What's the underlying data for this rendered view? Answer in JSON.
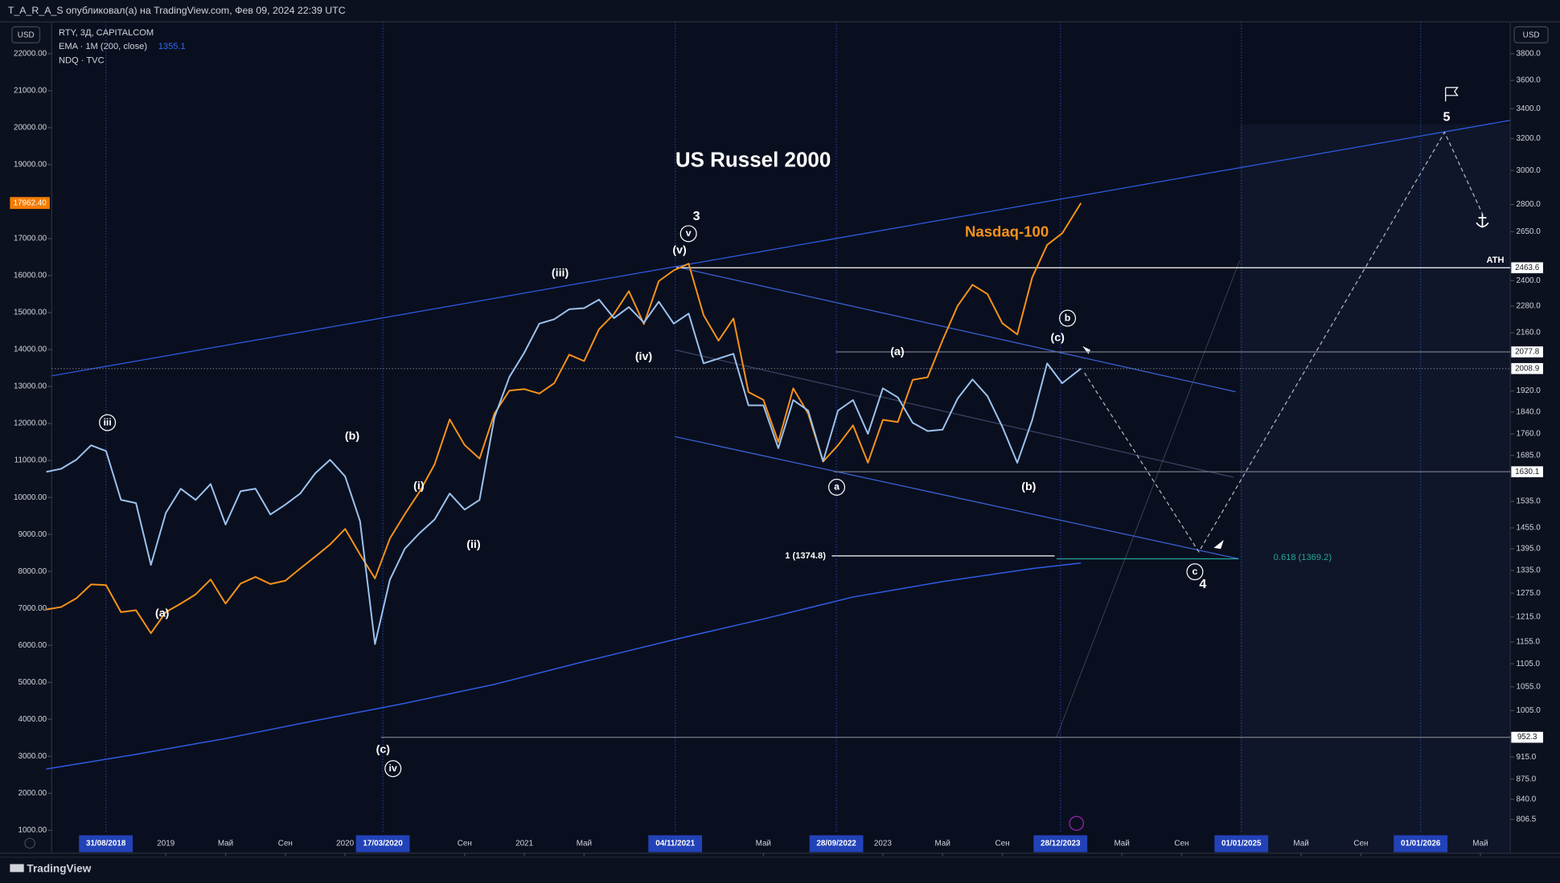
{
  "chart_data": {
    "type": "line",
    "header": "T_A_R_A_S опубликовал(а) на TradingView.com, Фев 09, 2024 22:39 UTC",
    "title": "US Russel 2000",
    "currency_left": "USD",
    "currency_right": "USD",
    "footer": "TradingView",
    "x": [
      "01/05/2018",
      "01/06/2018",
      "01/07/2018",
      "01/08/2018",
      "01/09/2018",
      "01/10/2018",
      "01/11/2018",
      "01/12/2018",
      "01/01/2019",
      "01/02/2019",
      "01/03/2019",
      "01/04/2019",
      "01/05/2019",
      "01/06/2019",
      "01/07/2019",
      "01/08/2019",
      "01/09/2019",
      "01/10/2019",
      "01/11/2019",
      "01/12/2019",
      "01/01/2020",
      "01/02/2020",
      "01/03/2020",
      "01/04/2020",
      "01/05/2020",
      "01/06/2020",
      "01/07/2020",
      "01/08/2020",
      "01/09/2020",
      "01/10/2020",
      "01/11/2020",
      "01/12/2020",
      "01/01/2021",
      "01/02/2021",
      "01/03/2021",
      "01/04/2021",
      "01/05/2021",
      "01/06/2021",
      "01/07/2021",
      "01/08/2021",
      "01/09/2021",
      "01/10/2021",
      "01/11/2021",
      "01/12/2021",
      "01/01/2022",
      "01/02/2022",
      "01/03/2022",
      "01/04/2022",
      "01/05/2022",
      "01/06/2022",
      "01/07/2022",
      "01/08/2022",
      "01/09/2022",
      "01/10/2022",
      "01/11/2022",
      "01/12/2022",
      "01/01/2023",
      "01/02/2023",
      "01/03/2023",
      "01/04/2023",
      "01/05/2023",
      "01/06/2023",
      "01/07/2023",
      "01/08/2023",
      "01/09/2023",
      "01/10/2023",
      "01/11/2023",
      "01/12/2023",
      "01/01/2024",
      "09/02/2024"
    ],
    "series": [
      {
        "name": "RTY, 3Д, CAPITALCOM",
        "color": "#9cc3ef",
        "axis": "y2",
        "values": [
          1630,
          1640,
          1670,
          1720,
          1700,
          1540,
          1530,
          1350,
          1500,
          1575,
          1540,
          1590,
          1465,
          1567,
          1575,
          1495,
          1525,
          1560,
          1625,
          1670,
          1615,
          1475,
          1150,
          1310,
          1395,
          1440,
          1480,
          1560,
          1510,
          1540,
          1820,
          1975,
          2075,
          2200,
          2220,
          2265,
          2270,
          2310,
          2225,
          2275,
          2205,
          2300,
          2200,
          2245,
          2030,
          2050,
          2070,
          1865,
          1865,
          1710,
          1885,
          1845,
          1665,
          1845,
          1885,
          1760,
          1930,
          1895,
          1800,
          1770,
          1775,
          1890,
          1965,
          1900,
          1785,
          1660,
          1810,
          2030,
          1950,
          2008.9
        ]
      },
      {
        "name": "EMA · 1M (200, close)",
        "color": "#2e5ce6",
        "axis": "y2",
        "x": [
          "01/05/2018",
          "01/11/2018",
          "01/05/2019",
          "01/11/2019",
          "01/05/2020",
          "01/11/2020",
          "01/05/2021",
          "01/11/2021",
          "01/05/2022",
          "01/11/2022",
          "01/05/2023",
          "01/11/2023",
          "09/02/2024"
        ],
        "values": [
          893,
          920,
          950,
          985,
          1020,
          1060,
          1110,
          1160,
          1210,
          1265,
          1305,
          1340,
          1355.1
        ]
      },
      {
        "name": "NDQ · TVC",
        "color": "#f7931a",
        "values": [
          6970,
          7040,
          7270,
          7650,
          7630,
          6900,
          6950,
          6330,
          6900,
          7130,
          7380,
          7780,
          7130,
          7670,
          7850,
          7660,
          7750,
          8080,
          8400,
          8730,
          9150,
          8460,
          7810,
          8890,
          9550,
          10160,
          10900,
          12110,
          11420,
          11050,
          12270,
          12890,
          12930,
          12810,
          13090,
          13860,
          13690,
          14550,
          14960,
          15580,
          14690,
          15850,
          16140,
          16320,
          14930,
          14240,
          14840,
          12850,
          12640,
          11500,
          12950,
          12270,
          10970,
          11410,
          11950,
          10940,
          12100,
          12040,
          13180,
          13250,
          14250,
          15180,
          15750,
          15500,
          14710,
          14410,
          15950,
          16830,
          17140,
          17962.4
        ]
      }
    ],
    "xlim": [
      "12/05/2018",
      "01/07/2026"
    ],
    "xticks": [
      {
        "value": "01/01/2019",
        "label": "2019"
      },
      {
        "value": "01/05/2019",
        "label": "Май"
      },
      {
        "value": "01/09/2019",
        "label": "Сен"
      },
      {
        "value": "01/01/2020",
        "label": "2020"
      },
      {
        "value": "01/09/2020",
        "label": "Сен"
      },
      {
        "value": "01/01/2021",
        "label": "2021"
      },
      {
        "value": "01/05/2021",
        "label": "Май"
      },
      {
        "value": "01/05/2022",
        "label": "Май"
      },
      {
        "value": "01/01/2023",
        "label": "2023"
      },
      {
        "value": "01/05/2023",
        "label": "Май"
      },
      {
        "value": "01/09/2023",
        "label": "Сен"
      },
      {
        "value": "01/05/2024",
        "label": "Май"
      },
      {
        "value": "01/09/2024",
        "label": "Сен"
      },
      {
        "value": "01/05/2025",
        "label": "Май"
      },
      {
        "value": "01/09/2025",
        "label": "Сен"
      },
      {
        "value": "01/05/2026",
        "label": "Май"
      }
    ],
    "x_markers": [
      "31/08/2018",
      "17/03/2020",
      "04/11/2021",
      "28/09/2022",
      "28/12/2023",
      "01/01/2025",
      "01/01/2026"
    ],
    "ylim": [
      1000,
      22000
    ],
    "yticks": [
      {
        "value": 1000,
        "label": "1000.00"
      },
      {
        "value": 2000,
        "label": "2000.00"
      },
      {
        "value": 3000,
        "label": "3000.00"
      },
      {
        "value": 4000,
        "label": "4000.00"
      },
      {
        "value": 5000,
        "label": "5000.00"
      },
      {
        "value": 6000,
        "label": "6000.00"
      },
      {
        "value": 7000,
        "label": "7000.00"
      },
      {
        "value": 8000,
        "label": "8000.00"
      },
      {
        "value": 9000,
        "label": "9000.00"
      },
      {
        "value": 10000,
        "label": "10000.00"
      },
      {
        "value": 11000,
        "label": "11000.00"
      },
      {
        "value": 12000,
        "label": "12000.00"
      },
      {
        "value": 13000,
        "label": "13000.00"
      },
      {
        "value": 14000,
        "label": "14000.00"
      },
      {
        "value": 15000,
        "label": "15000.00"
      },
      {
        "value": 16000,
        "label": "16000.00"
      },
      {
        "value": 17000,
        "label": "17000.00"
      },
      {
        "value": 19000,
        "label": "19000.00"
      },
      {
        "value": 20000,
        "label": "20000.00"
      },
      {
        "value": 21000,
        "label": "21000.00"
      },
      {
        "value": 22000,
        "label": "22000.00"
      }
    ],
    "y2lim": [
      806.5,
      3800
    ],
    "y2_log": true,
    "y2ticks": [
      {
        "value": 3800,
        "label": "3800.0"
      },
      {
        "value": 3600,
        "label": "3600.0"
      },
      {
        "value": 3400,
        "label": "3400.0"
      },
      {
        "value": 3200,
        "label": "3200.0"
      },
      {
        "value": 3000,
        "label": "3000.0"
      },
      {
        "value": 2800,
        "label": "2800.0"
      },
      {
        "value": 2650,
        "label": "2650.0"
      },
      {
        "value": 2400,
        "label": "2400.0"
      },
      {
        "value": 2280,
        "label": "2280.0"
      },
      {
        "value": 2160,
        "label": "2160.0"
      },
      {
        "value": 1920,
        "label": "1920.0"
      },
      {
        "value": 1840,
        "label": "1840.0"
      },
      {
        "value": 1760,
        "label": "1760.0"
      },
      {
        "value": 1685,
        "label": "1685.0"
      },
      {
        "value": 1535,
        "label": "1535.0"
      },
      {
        "value": 1455,
        "label": "1455.0"
      },
      {
        "value": 1395,
        "label": "1395.0"
      },
      {
        "value": 1335,
        "label": "1335.0"
      },
      {
        "value": 1275,
        "label": "1275.0"
      },
      {
        "value": 1215,
        "label": "1215.0"
      },
      {
        "value": 1155,
        "label": "1155.0"
      },
      {
        "value": 1105,
        "label": "1105.0"
      },
      {
        "value": 1055,
        "label": "1055.0"
      },
      {
        "value": 1005,
        "label": "1005.0"
      },
      {
        "value": 915,
        "label": "915.0"
      },
      {
        "value": 875,
        "label": "875.0"
      },
      {
        "value": 840,
        "label": "840.0"
      },
      {
        "value": 806.5,
        "label": "806.5"
      }
    ],
    "price_lines": [
      {
        "value": 2463.6,
        "label": "2463.6"
      },
      {
        "value": 2077.8,
        "label": "2077.8"
      },
      {
        "value": 2008.9,
        "label": "2008.9"
      },
      {
        "value": 1630.1,
        "label": "1630.1"
      },
      {
        "value": 952.3,
        "label": "952.3"
      }
    ],
    "left_marker": {
      "value": 17962.4,
      "label": "17962.40"
    },
    "annotations": [
      {
        "text": "iii",
        "circled": true
      },
      {
        "text": "(a)"
      },
      {
        "text": "(b)"
      },
      {
        "text": "(c)"
      },
      {
        "text": "iv",
        "circled": true
      },
      {
        "text": "(i)"
      },
      {
        "text": "(ii)"
      },
      {
        "text": "(iii)"
      },
      {
        "text": "(iv)"
      },
      {
        "text": "(v)"
      },
      {
        "text": "v",
        "circled": true
      },
      {
        "text": "3"
      },
      {
        "text": "a",
        "circled": true
      },
      {
        "text": "(a)"
      },
      {
        "text": "(b)"
      },
      {
        "text": "b",
        "circled": true
      },
      {
        "text": "(c)"
      },
      {
        "text": "c",
        "circled": true
      },
      {
        "text": "4"
      },
      {
        "text": "5"
      },
      {
        "text": "Nasdaq-100"
      },
      {
        "text": "ATH"
      },
      {
        "text": "1 (1374.8)"
      },
      {
        "text": "0.618 (1369.2)"
      }
    ]
  }
}
